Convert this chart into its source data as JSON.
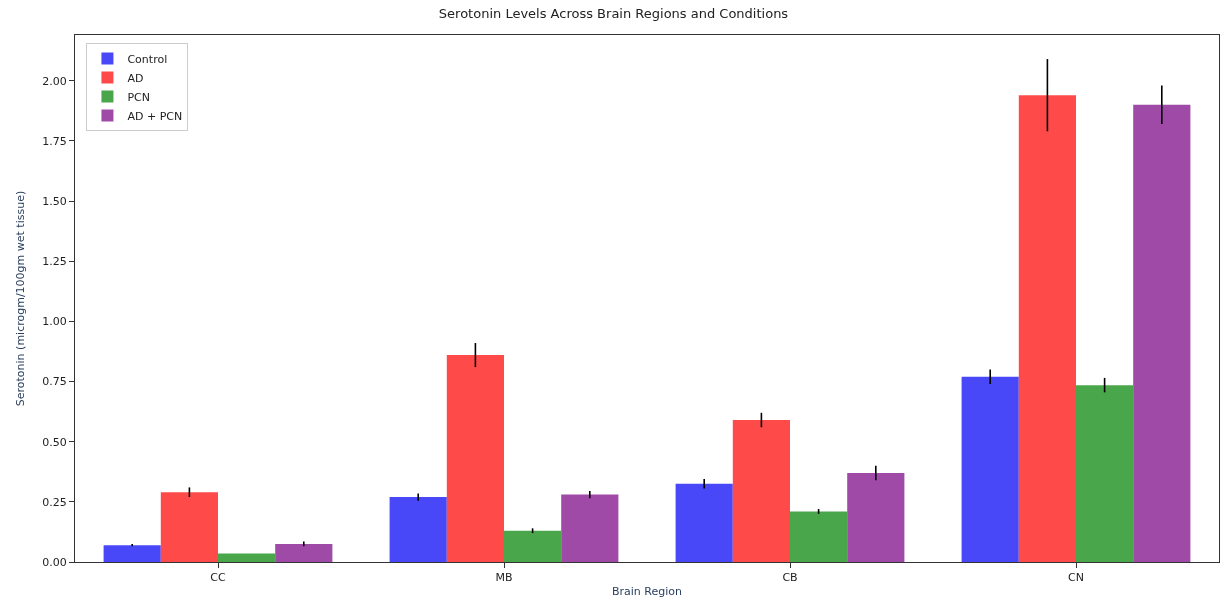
{
  "chart_data": {
    "type": "bar",
    "title": "Serotonin Levels Across Brain Regions and Conditions",
    "xlabel": "Brain Region",
    "ylabel": "Serotonin (microgm/100gm wet tissue)",
    "categories": [
      "CC",
      "MB",
      "CB",
      "CN"
    ],
    "series": [
      {
        "name": "Control",
        "color": "#4848f8",
        "values": [
          0.07,
          0.27,
          0.325,
          0.77
        ],
        "errors": [
          0.005,
          0.015,
          0.02,
          0.03
        ]
      },
      {
        "name": "AD",
        "color": "#ff4a4a",
        "values": [
          0.29,
          0.86,
          0.59,
          1.94
        ],
        "errors": [
          0.02,
          0.05,
          0.03,
          0.15
        ]
      },
      {
        "name": "PCN",
        "color": "#4aa64a",
        "values": [
          0.035,
          0.13,
          0.21,
          0.735
        ],
        "errors": [
          null,
          0.01,
          0.01,
          0.03
        ]
      },
      {
        "name": "AD + PCN",
        "color": "#a04aa8",
        "values": [
          0.075,
          0.28,
          0.37,
          1.9
        ],
        "errors": [
          0.01,
          0.015,
          0.03,
          0.08
        ]
      }
    ],
    "ylim": [
      0,
      2.19
    ],
    "yticks": [
      {
        "value": 0,
        "label": "0.00"
      },
      {
        "value": 0.25,
        "label": "0.25"
      },
      {
        "value": 0.5,
        "label": "0.50"
      },
      {
        "value": 0.75,
        "label": "0.75"
      },
      {
        "value": 1,
        "label": "1.00"
      },
      {
        "value": 1.25,
        "label": "1.25"
      },
      {
        "value": 1.5,
        "label": "1.50"
      },
      {
        "value": 1.75,
        "label": "1.75"
      },
      {
        "value": 2,
        "label": "2.00"
      }
    ],
    "legend": "top left"
  }
}
